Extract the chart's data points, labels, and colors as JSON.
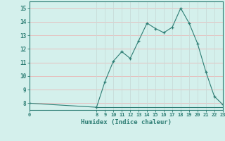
{
  "x": [
    0,
    8,
    9,
    10,
    11,
    12,
    13,
    14,
    15,
    16,
    17,
    18,
    19,
    20,
    21,
    22,
    23
  ],
  "y": [
    8,
    7.7,
    9.6,
    11.1,
    11.8,
    11.3,
    12.6,
    13.9,
    13.5,
    13.2,
    13.6,
    15.0,
    13.9,
    12.4,
    10.3,
    8.5,
    7.9
  ],
  "flat_x": [
    8,
    9,
    10,
    11,
    12,
    13,
    14,
    15,
    16,
    17,
    18,
    19,
    20,
    21,
    22,
    23
  ],
  "flat_y": [
    7.7,
    7.7,
    7.7,
    7.7,
    7.7,
    7.7,
    7.7,
    7.7,
    7.7,
    7.7,
    7.7,
    7.7,
    7.7,
    7.7,
    7.7,
    7.7
  ],
  "xlabel": "Humidex (Indice chaleur)",
  "ylim": [
    7.5,
    15.5
  ],
  "xlim": [
    0,
    23
  ],
  "yticks": [
    8,
    9,
    10,
    11,
    12,
    13,
    14,
    15
  ],
  "xticks": [
    0,
    8,
    9,
    10,
    11,
    12,
    13,
    14,
    15,
    16,
    17,
    18,
    19,
    20,
    21,
    22,
    23
  ],
  "xtick_labels": [
    "0",
    "8",
    "9",
    "10",
    "11",
    "12",
    "13",
    "14",
    "15",
    "16",
    "17",
    "18",
    "19",
    "20",
    "21",
    "22",
    "23"
  ],
  "line_color": "#2d7d74",
  "bg_color": "#d4f0ec",
  "grid_color_v": "#c8dbd8",
  "grid_color_h": "#e8b8b8",
  "tick_color": "#2d7d74",
  "label_color": "#2d7d74"
}
